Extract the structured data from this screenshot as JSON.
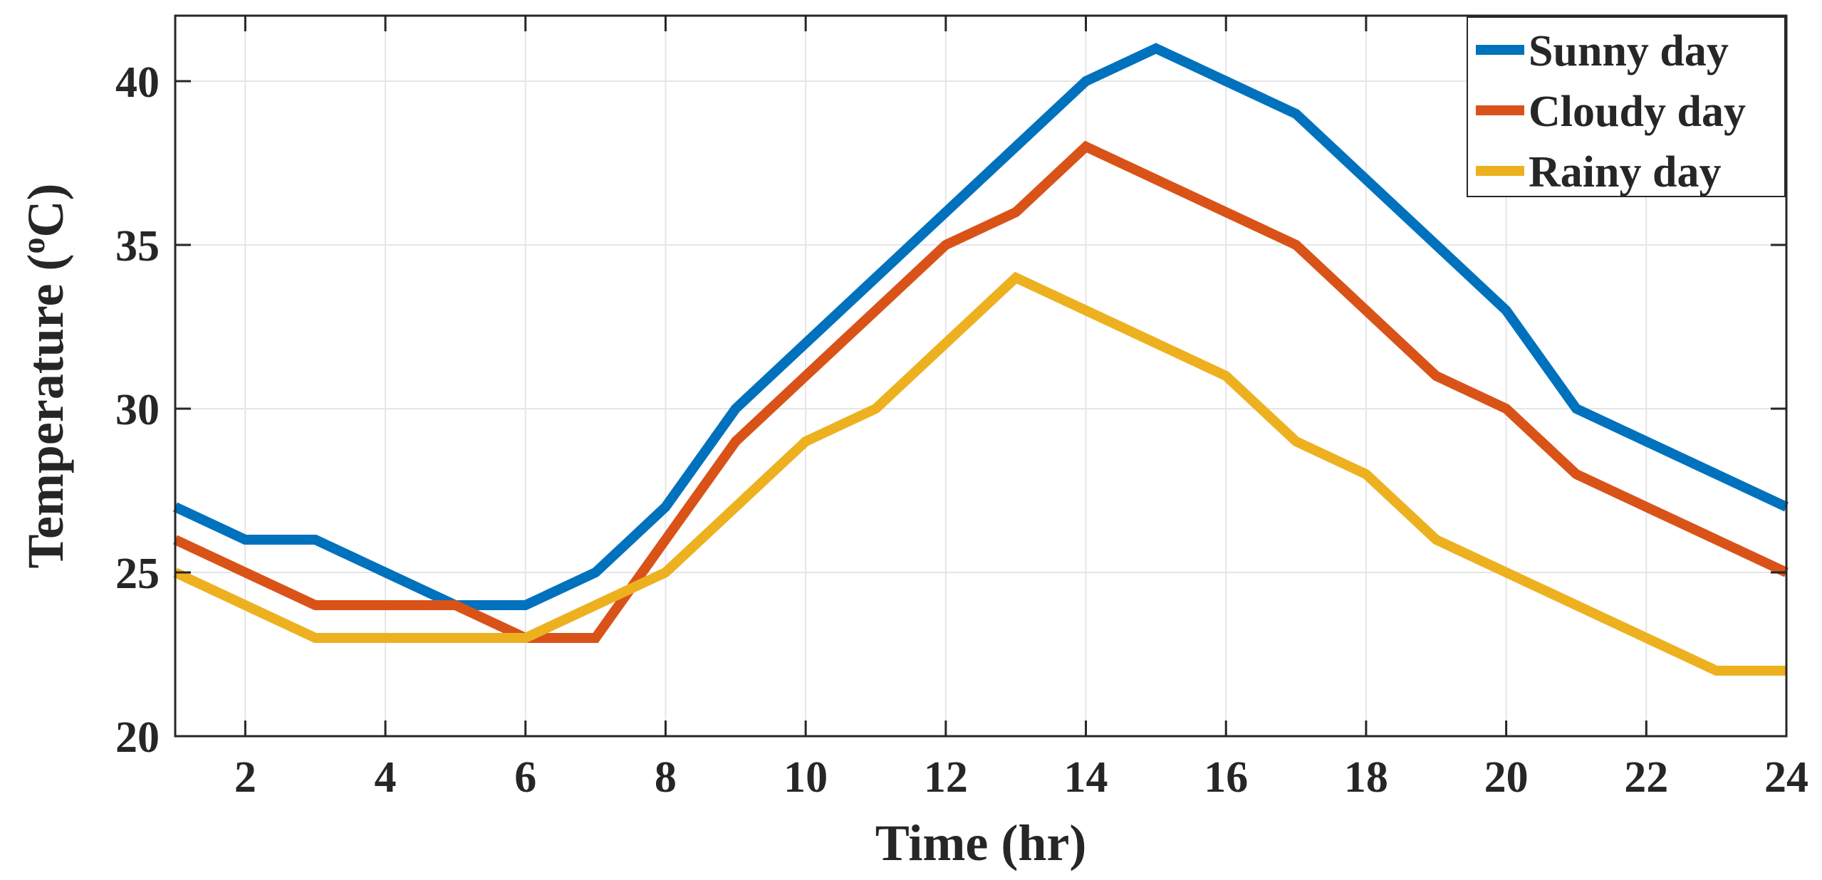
{
  "chart_data": {
    "type": "line",
    "title": "",
    "xlabel": "Time (hr)",
    "ylabel_parts": {
      "prefix": "Temperature (",
      "superscript": "o",
      "suffix": "C)"
    },
    "xlim": [
      1,
      24
    ],
    "ylim": [
      20,
      42
    ],
    "xticks": [
      2,
      4,
      6,
      8,
      10,
      12,
      14,
      16,
      18,
      20,
      22,
      24
    ],
    "xtick_labels": [
      "2",
      "4",
      "6",
      "8",
      "10",
      "12",
      "14",
      "16",
      "18",
      "20",
      "22",
      "24"
    ],
    "yticks": [
      20,
      25,
      30,
      35,
      40
    ],
    "ytick_labels": [
      "20",
      "25",
      "30",
      "35",
      "40"
    ],
    "grid": true,
    "legend_position": "top-right",
    "x": [
      1,
      2,
      3,
      4,
      5,
      6,
      7,
      8,
      9,
      10,
      11,
      12,
      13,
      14,
      15,
      16,
      17,
      18,
      19,
      20,
      21,
      22,
      23,
      24
    ],
    "series": [
      {
        "name": "Sunny day",
        "color": "#0072BD",
        "values": [
          27,
          26,
          26,
          25,
          24,
          24,
          25,
          27,
          30,
          32,
          34,
          36,
          38,
          40,
          41,
          40,
          39,
          37,
          35,
          33,
          30,
          29,
          28,
          27
        ]
      },
      {
        "name": "Cloudy day",
        "color": "#D95319",
        "values": [
          26,
          25,
          24,
          24,
          24,
          23,
          23,
          26,
          29,
          31,
          33,
          35,
          36,
          38,
          37,
          36,
          35,
          33,
          31,
          30,
          28,
          27,
          26,
          25
        ]
      },
      {
        "name": "Rainy day",
        "color": "#EDB120",
        "values": [
          25,
          24,
          23,
          23,
          23,
          23,
          24,
          25,
          27,
          29,
          30,
          32,
          34,
          33,
          32,
          31,
          29,
          28,
          26,
          25,
          24,
          23,
          22,
          22
        ]
      }
    ]
  }
}
